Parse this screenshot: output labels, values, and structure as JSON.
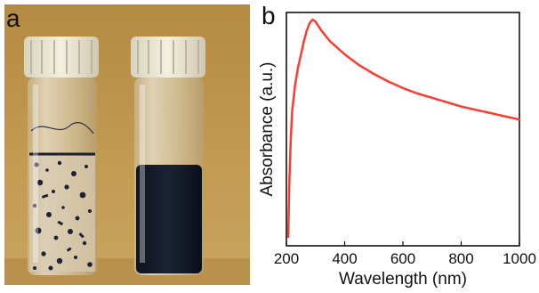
{
  "figure": {
    "panel_a": {
      "letter": "a"
    },
    "panel_b": {
      "letter": "b"
    }
  },
  "chart_data": {
    "type": "line",
    "title": "",
    "xlabel": "Wavelength (nm)",
    "ylabel": "Absorbance (a.u.)",
    "xlim": [
      200,
      1000
    ],
    "xticks": [
      200,
      400,
      600,
      800,
      1000
    ],
    "y_tick_labels_shown": false,
    "grid": false,
    "legend": "none",
    "series": [
      {
        "color": "#ff3b30",
        "x": [
          206,
          210,
          215,
          220,
          230,
          240,
          250,
          260,
          270,
          280,
          290,
          300,
          320,
          350,
          400,
          450,
          500,
          550,
          600,
          650,
          700,
          750,
          800,
          850,
          900,
          950,
          1000
        ],
        "y": [
          0.0,
          0.25,
          0.45,
          0.58,
          0.7,
          0.78,
          0.84,
          0.9,
          0.95,
          0.985,
          1.0,
          0.99,
          0.95,
          0.9,
          0.84,
          0.79,
          0.75,
          0.715,
          0.685,
          0.66,
          0.64,
          0.62,
          0.6,
          0.585,
          0.57,
          0.555,
          0.54
        ]
      }
    ]
  }
}
